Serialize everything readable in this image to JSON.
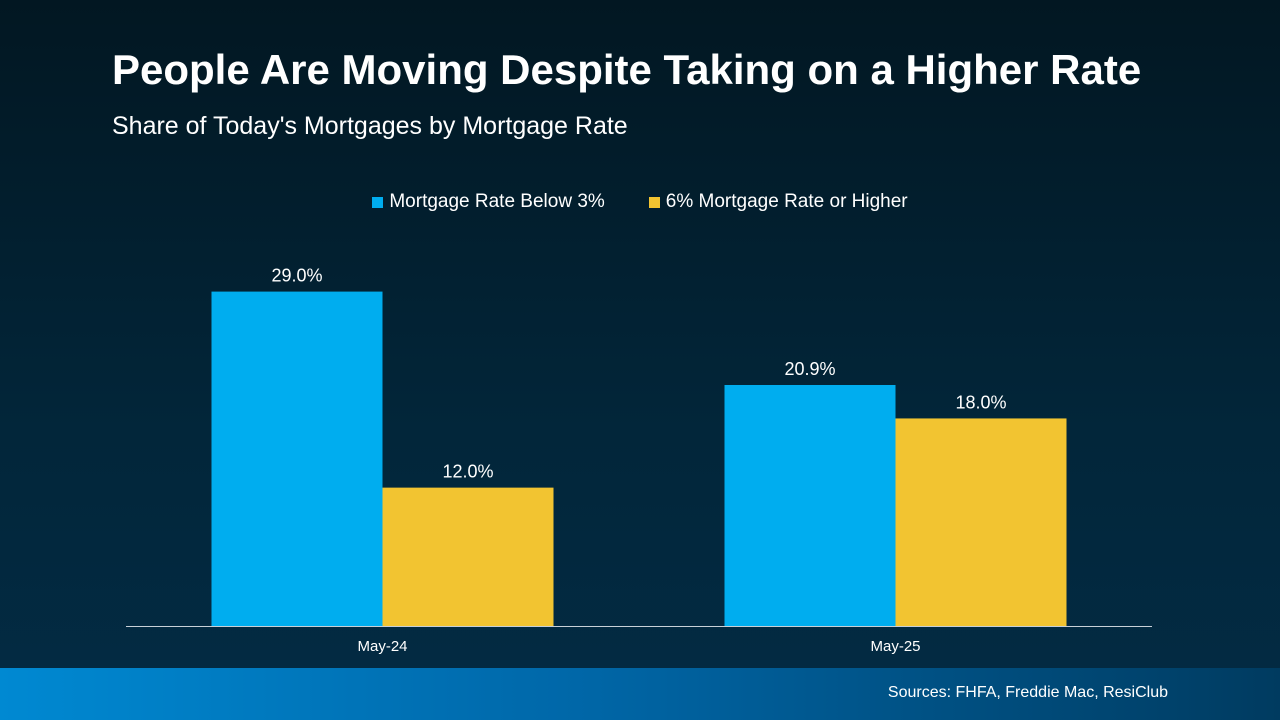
{
  "chart_data": {
    "type": "bar",
    "title": "People Are Moving Despite Taking on a Higher Rate",
    "subtitle": "Share of Today's Mortgages by Mortgage Rate",
    "categories": [
      "May-24",
      "May-25"
    ],
    "series": [
      {
        "name": "Mortgage Rate Below 3%",
        "values": [
          29.0,
          20.9
        ],
        "labels": [
          "29.0%",
          "20.9%"
        ],
        "color": "#00adef"
      },
      {
        "name": "6% Mortgage Rate or Higher",
        "values": [
          12.0,
          18.0
        ],
        "labels": [
          "12.0%",
          "18.0%"
        ],
        "color": "#f2c431"
      }
    ],
    "ylim": [
      0,
      32
    ],
    "grid": false,
    "legend": "top-center",
    "xlabel": "",
    "ylabel": ""
  },
  "footer": {
    "source": "Sources: FHFA, Freddie Mac, ResiClub"
  }
}
